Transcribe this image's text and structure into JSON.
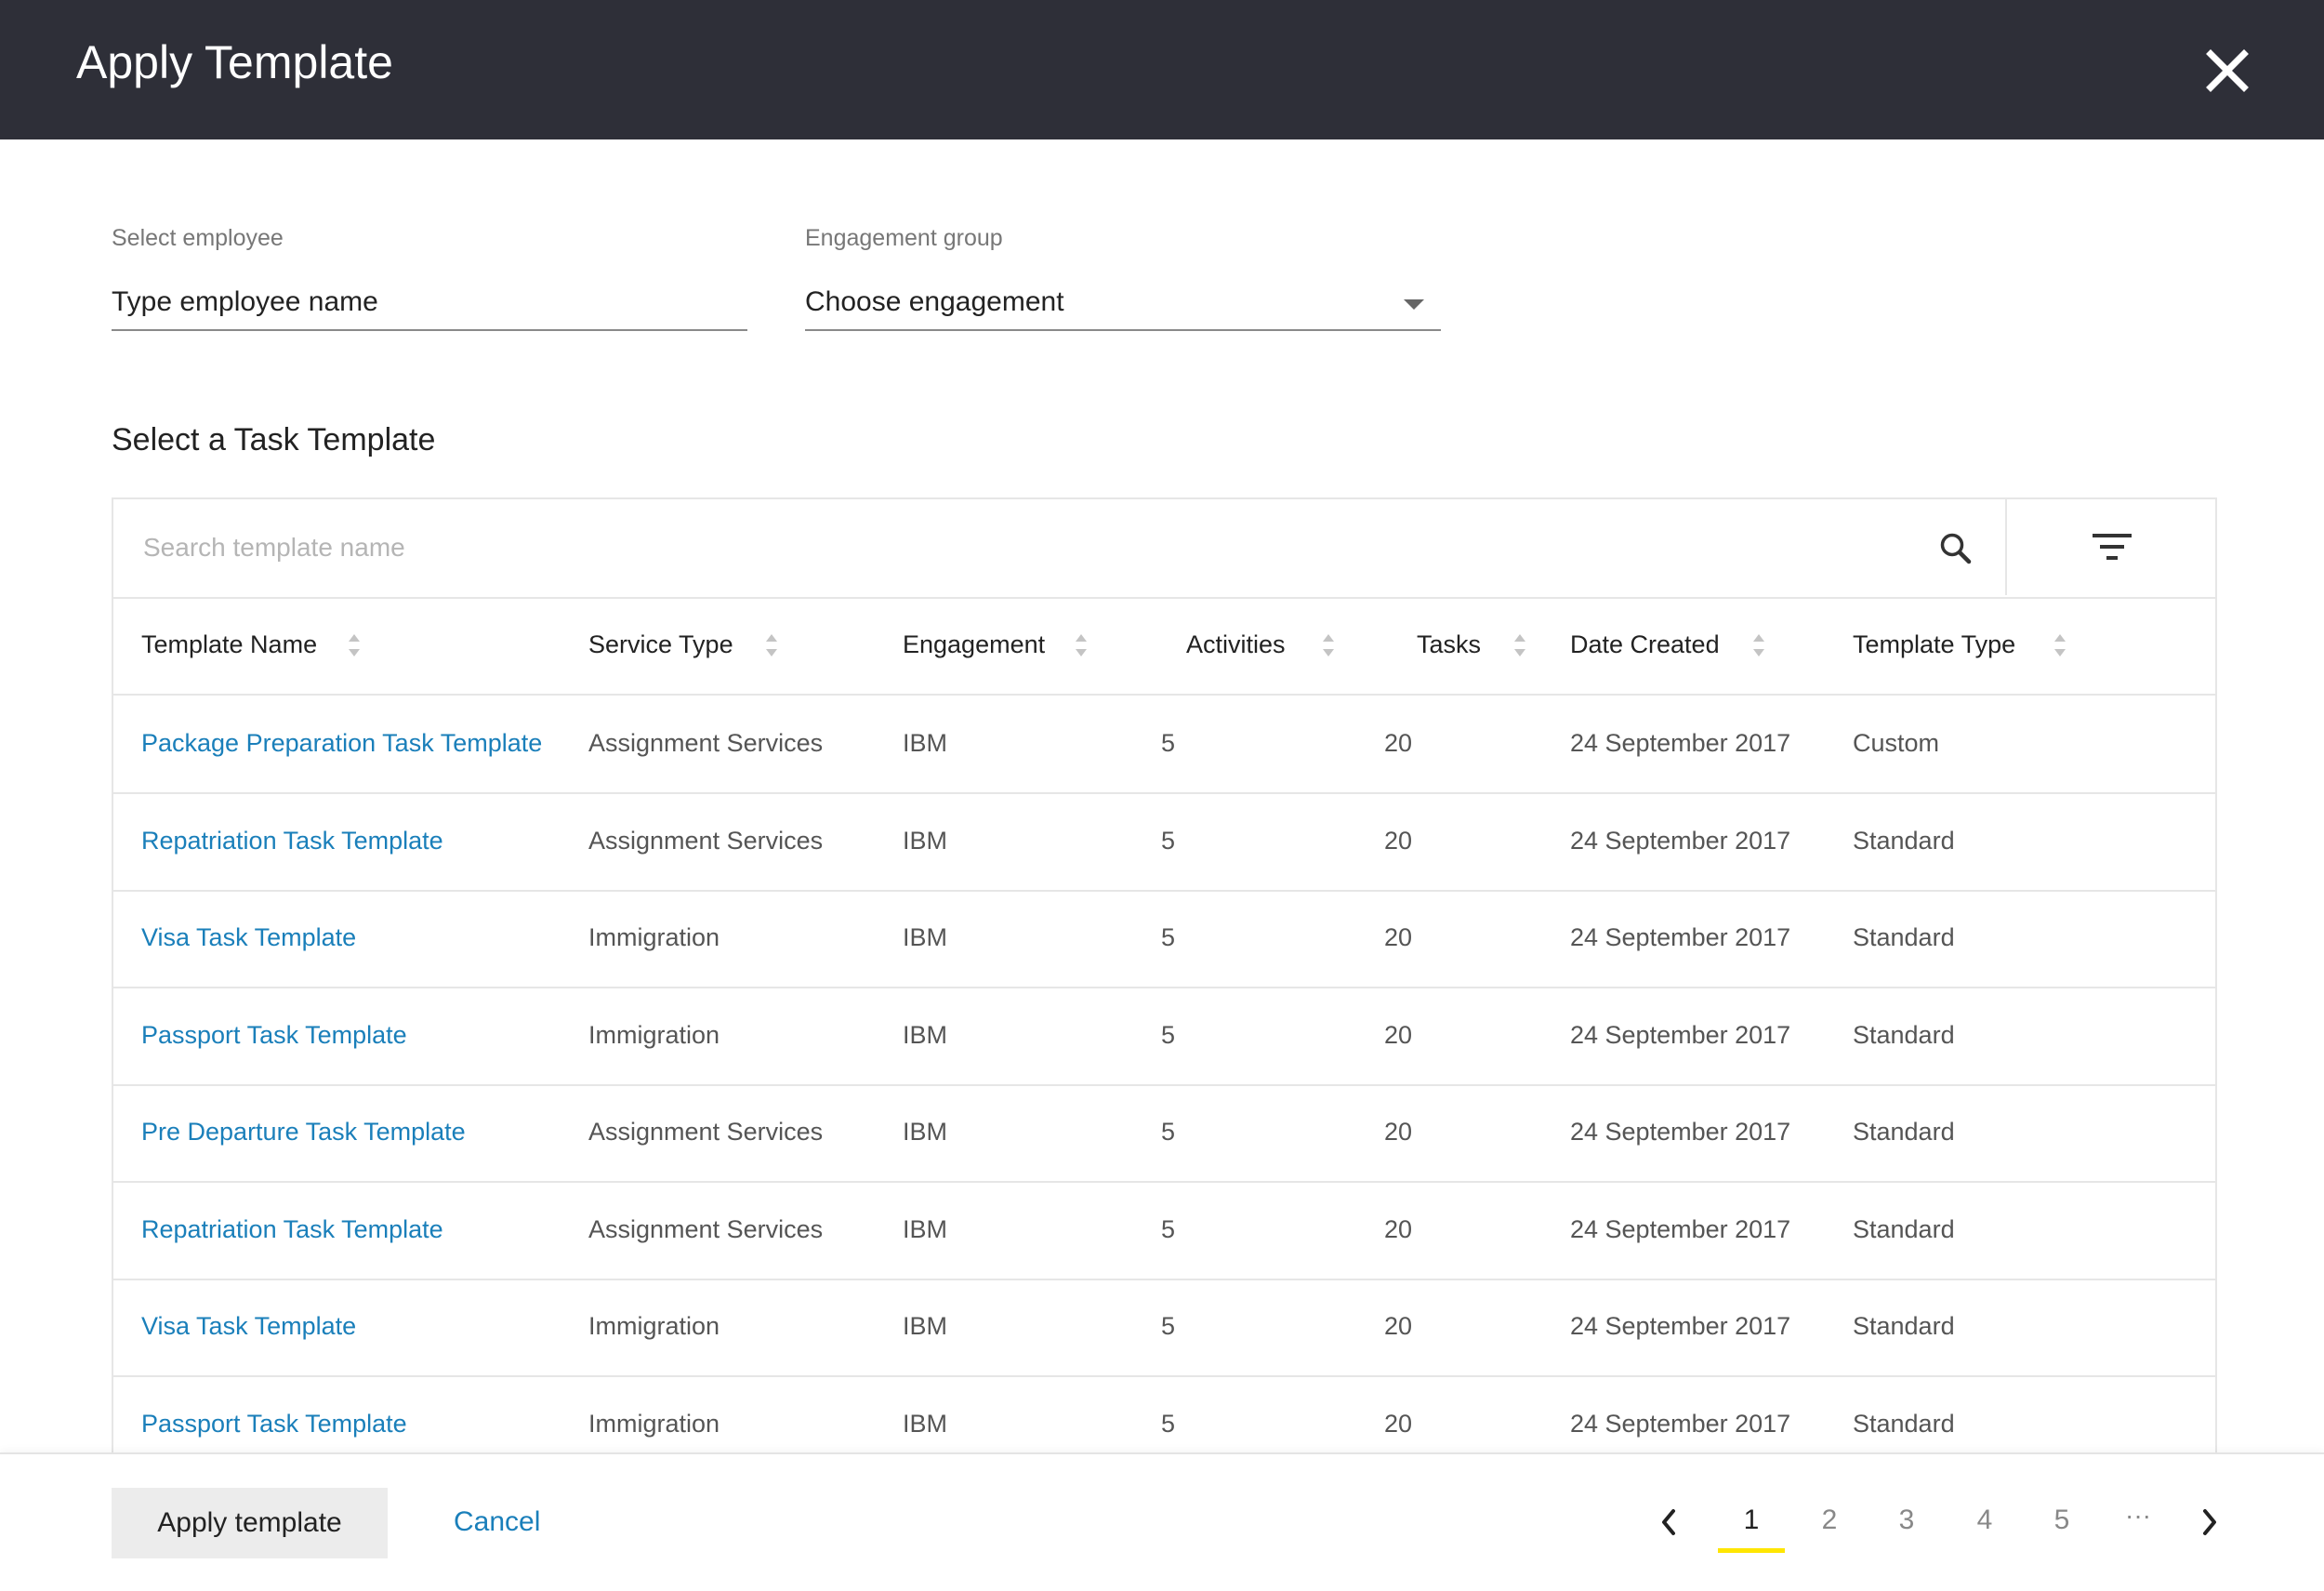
{
  "header": {
    "title": "Apply Template"
  },
  "employee_field": {
    "label": "Select employee",
    "value": "Type employee name"
  },
  "engagement_field": {
    "label": "Engagement group",
    "value": "Choose engagement"
  },
  "section": {
    "title": "Select a Task Template"
  },
  "search": {
    "placeholder": "Search template name"
  },
  "table": {
    "columns": [
      "Template Name",
      "Service Type",
      "Engagement",
      "Activities",
      "Tasks",
      "Date Created",
      "Template Type"
    ],
    "rows": [
      [
        "Package Preparation Task Template",
        "Assignment Services",
        "IBM",
        "5",
        "20",
        "24 September 2017",
        "Custom"
      ],
      [
        "Repatriation Task Template",
        "Assignment Services",
        "IBM",
        "5",
        "20",
        "24 September 2017",
        "Standard"
      ],
      [
        "Visa Task Template",
        "Immigration",
        "IBM",
        "5",
        "20",
        "24 September 2017",
        "Standard"
      ],
      [
        "Passport Task Template",
        "Immigration",
        "IBM",
        "5",
        "20",
        "24 September 2017",
        "Standard"
      ],
      [
        "Pre Departure Task Template",
        "Assignment Services",
        "IBM",
        "5",
        "20",
        "24 September 2017",
        "Standard"
      ],
      [
        "Repatriation Task Template",
        "Assignment Services",
        "IBM",
        "5",
        "20",
        "24 September 2017",
        "Standard"
      ],
      [
        "Visa Task Template",
        "Immigration",
        "IBM",
        "5",
        "20",
        "24 September 2017",
        "Standard"
      ],
      [
        "Passport Task Template",
        "Immigration",
        "IBM",
        "5",
        "20",
        "24 September 2017",
        "Standard"
      ]
    ]
  },
  "footer": {
    "apply_label": "Apply template",
    "cancel_label": "Cancel",
    "pagination": {
      "pages": [
        "1",
        "2",
        "3",
        "4",
        "5"
      ],
      "current": "1",
      "ellipsis": "···"
    }
  },
  "colors": {
    "header_bg": "#2e2f38",
    "link": "#1a7fba",
    "active_page_underline": "#ffe600"
  },
  "icons": [
    "close-icon",
    "search-icon",
    "filter-icon",
    "sort-icon",
    "chevron-down-icon",
    "chevron-left-icon",
    "chevron-right-icon"
  ]
}
